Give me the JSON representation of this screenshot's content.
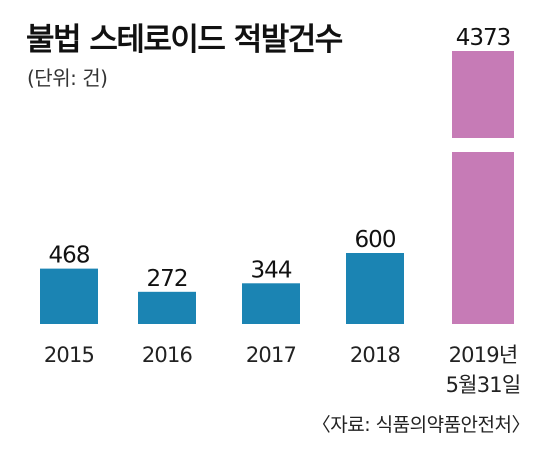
{
  "chart_data": {
    "type": "bar",
    "title": "불법 스테로이드 적발건수",
    "unit": "(단위: 건)",
    "categories": [
      "2015",
      "2016",
      "2017",
      "2018",
      "2019년\n5월31일"
    ],
    "values": [
      468,
      272,
      344,
      600,
      4373
    ],
    "data_labels": [
      "468",
      "272",
      "344",
      "600",
      "4373"
    ],
    "colors": [
      "#1b84b3",
      "#1b84b3",
      "#1b84b3",
      "#1b84b3",
      "#c67bb6"
    ],
    "axis_broken": true,
    "grid": false,
    "source": "〈자료: 식품의약품안전처〉"
  }
}
